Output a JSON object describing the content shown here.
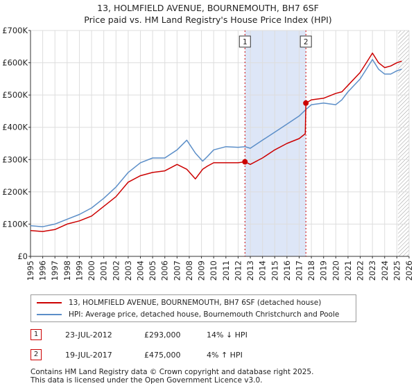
{
  "title_line1": "13, HOLMFIELD AVENUE, BOURNEMOUTH, BH7 6SF",
  "title_line2": "Price paid vs. HM Land Registry's House Price Index (HPI)",
  "colors": {
    "property": "#cc0000",
    "hpi": "#5b8ec8",
    "shade": "#dde6f7",
    "grid": "#dddddd",
    "future_hatch": "#999999"
  },
  "chart_data": {
    "type": "line",
    "title": "13, HOLMFIELD AVENUE, BOURNEMOUTH, BH7 6SF — Price paid vs. HM Land Registry's House Price Index (HPI)",
    "xlim": [
      1995,
      2026
    ],
    "ylim": [
      0,
      700000
    ],
    "x_ticks": [
      1995,
      1996,
      1997,
      1998,
      1999,
      2000,
      2001,
      2002,
      2003,
      2004,
      2005,
      2006,
      2007,
      2008,
      2009,
      2010,
      2011,
      2012,
      2013,
      2014,
      2015,
      2016,
      2017,
      2018,
      2019,
      2020,
      2021,
      2022,
      2023,
      2024,
      2025,
      2026
    ],
    "y_ticks": [
      0,
      100000,
      200000,
      300000,
      400000,
      500000,
      600000,
      700000
    ],
    "y_tick_labels": [
      "£0",
      "£100K",
      "£200K",
      "£300K",
      "£400K",
      "£500K",
      "£600K",
      "£700K"
    ],
    "shaded_range": [
      2012.56,
      2017.55
    ],
    "future_from": 2025.1,
    "series": [
      {
        "name": "13, HOLMFIELD AVENUE, BOURNEMOUTH, BH7 6SF (detached house)",
        "x": [
          1995.0,
          1996.0,
          1997.0,
          1998.0,
          1999.0,
          2000.0,
          2001.0,
          2002.0,
          2003.0,
          2004.0,
          2005.0,
          2006.0,
          2007.0,
          2007.8,
          2008.5,
          2009.1,
          2009.5,
          2010.0,
          2011.0,
          2012.0,
          2012.56,
          2013.0,
          2014.0,
          2015.0,
          2016.0,
          2017.0,
          2017.5,
          2017.55,
          2018.0,
          2019.0,
          2020.0,
          2020.5,
          2021.0,
          2022.0,
          2022.5,
          2023.0,
          2023.5,
          2024.0,
          2024.5,
          2025.0,
          2025.4
        ],
        "values": [
          80000,
          77000,
          83000,
          100000,
          110000,
          125000,
          155000,
          185000,
          230000,
          250000,
          260000,
          265000,
          285000,
          270000,
          240000,
          270000,
          280000,
          290000,
          290000,
          290000,
          293000,
          285000,
          305000,
          330000,
          350000,
          365000,
          380000,
          475000,
          485000,
          490000,
          505000,
          510000,
          530000,
          570000,
          600000,
          630000,
          600000,
          585000,
          590000,
          600000,
          605000
        ]
      },
      {
        "name": "HPI: Average price, detached house, Bournemouth Christchurch and Poole",
        "x": [
          1995.0,
          1996.0,
          1997.0,
          1998.0,
          1999.0,
          2000.0,
          2001.0,
          2002.0,
          2003.0,
          2004.0,
          2005.0,
          2006.0,
          2007.0,
          2007.8,
          2008.5,
          2009.1,
          2009.5,
          2010.0,
          2011.0,
          2012.0,
          2012.56,
          2013.0,
          2014.0,
          2015.0,
          2016.0,
          2017.0,
          2017.55,
          2018.0,
          2019.0,
          2020.0,
          2020.5,
          2021.0,
          2022.0,
          2022.5,
          2023.0,
          2023.5,
          2024.0,
          2024.5,
          2025.0,
          2025.4
        ],
        "values": [
          95000,
          92000,
          100000,
          115000,
          130000,
          150000,
          180000,
          215000,
          260000,
          290000,
          305000,
          305000,
          330000,
          360000,
          320000,
          295000,
          310000,
          330000,
          340000,
          338000,
          340000,
          335000,
          360000,
          385000,
          410000,
          435000,
          455000,
          470000,
          475000,
          470000,
          485000,
          510000,
          550000,
          580000,
          610000,
          580000,
          565000,
          565000,
          575000,
          580000
        ]
      }
    ],
    "annotations": [
      {
        "label": "1",
        "x": 2012.56,
        "value": 293000
      },
      {
        "label": "2",
        "x": 2017.55,
        "value": 475000
      }
    ],
    "legend_position": "bottom"
  },
  "legend": {
    "property_label": "13, HOLMFIELD AVENUE, BOURNEMOUTH, BH7 6SF (detached house)",
    "hpi_label": "HPI: Average price, detached house, Bournemouth Christchurch and Poole"
  },
  "transactions": [
    {
      "num": "1",
      "date": "23-JUL-2012",
      "price": "£293,000",
      "hpi_change": "14% ↓ HPI"
    },
    {
      "num": "2",
      "date": "19-JUL-2017",
      "price": "£475,000",
      "hpi_change": "4% ↑ HPI"
    }
  ],
  "footer_line1": "Contains HM Land Registry data © Crown copyright and database right 2025.",
  "footer_line2": "This data is licensed under the Open Government Licence v3.0."
}
